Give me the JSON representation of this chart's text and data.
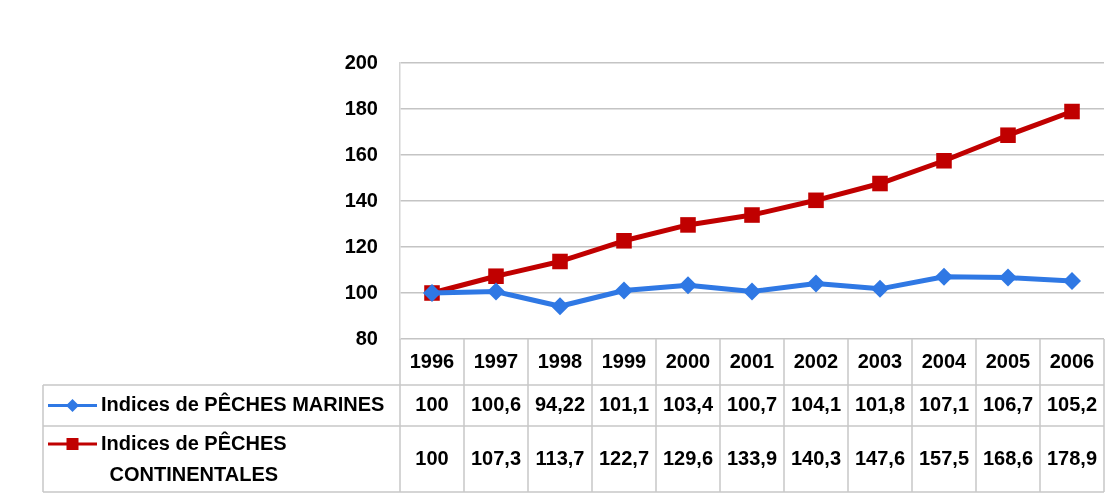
{
  "chart_data": {
    "type": "line",
    "categories": [
      "1996",
      "1997",
      "1998",
      "1999",
      "2000",
      "2001",
      "2002",
      "2003",
      "2004",
      "2005",
      "2006"
    ],
    "series": [
      {
        "name": "Indices de PÊCHES MARINES",
        "color": "#2f78e4",
        "marker": "diamond",
        "values": [
          100,
          100.6,
          94.22,
          101.1,
          103.4,
          100.7,
          104.1,
          101.8,
          107.1,
          106.7,
          105.2
        ],
        "value_labels": [
          "100",
          "100,6",
          "94,22",
          "101,1",
          "103,4",
          "100,7",
          "104,1",
          "101,8",
          "107,1",
          "106,7",
          "105,2"
        ]
      },
      {
        "name": "Indices de PÊCHES CONTINENTALES",
        "color": "#c00000",
        "marker": "square",
        "values": [
          100,
          107.3,
          113.7,
          122.7,
          129.6,
          133.9,
          140.3,
          147.6,
          157.5,
          168.6,
          178.9
        ],
        "value_labels": [
          "100",
          "107,3",
          "113,7",
          "122,7",
          "129,6",
          "133,9",
          "140,3",
          "147,6",
          "157,5",
          "168,6",
          "178,9"
        ]
      }
    ],
    "ylim": [
      80,
      200
    ],
    "yticks": [
      80,
      100,
      120,
      140,
      160,
      180,
      200
    ],
    "grid": "y",
    "legend": "bottom left",
    "line_style": "solid"
  }
}
